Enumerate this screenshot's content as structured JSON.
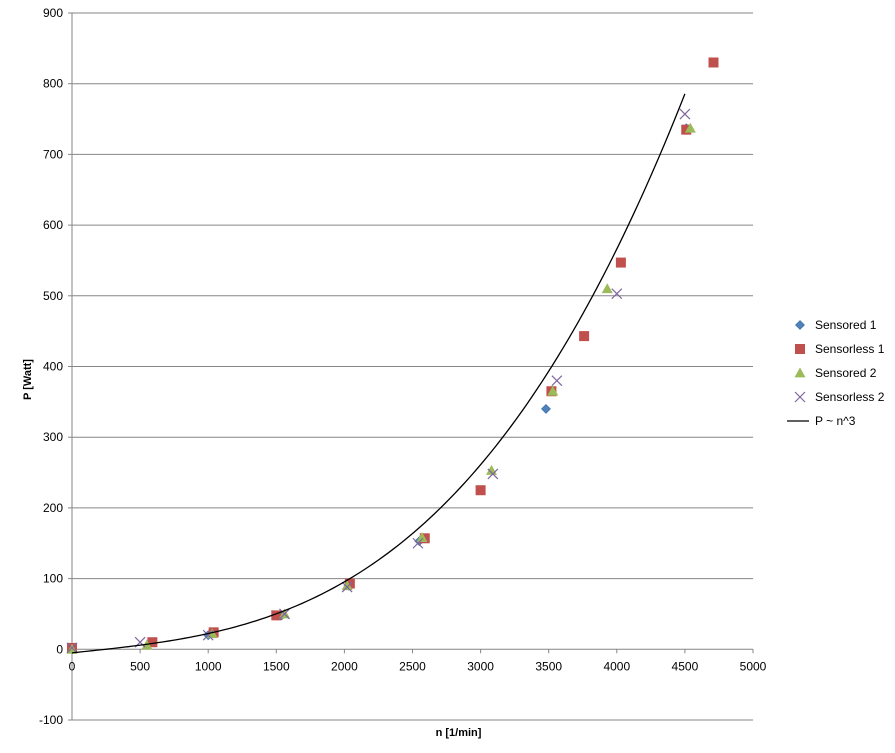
{
  "chart_data": {
    "type": "scatter",
    "title": "",
    "xlabel": "n  [1/min]",
    "ylabel": "P [Watt]",
    "xlim": [
      0,
      5000
    ],
    "ylim": [
      -100,
      900
    ],
    "xticks": [
      0,
      500,
      1000,
      1500,
      2000,
      2500,
      3000,
      3500,
      4000,
      4500,
      5000
    ],
    "yticks": [
      -100,
      0,
      100,
      200,
      300,
      400,
      500,
      600,
      700,
      800,
      900
    ],
    "grid": "horizontal",
    "legend_position": "right",
    "series": [
      {
        "name": "Sensored 1",
        "marker": "diamond",
        "color": "#4F81BD",
        "points": [
          [
            0,
            0
          ],
          [
            1000,
            20
          ],
          [
            1540,
            48
          ],
          [
            2030,
            90
          ],
          [
            2550,
            153
          ],
          [
            3480,
            340
          ],
          [
            4510,
            737
          ]
        ]
      },
      {
        "name": "Sensorless 1",
        "marker": "square",
        "color": "#C0504D",
        "points": [
          [
            0,
            2
          ],
          [
            590,
            10
          ],
          [
            1040,
            24
          ],
          [
            1500,
            48
          ],
          [
            2040,
            93
          ],
          [
            2590,
            157
          ],
          [
            3000,
            225
          ],
          [
            3520,
            365
          ],
          [
            3760,
            443
          ],
          [
            4030,
            547
          ],
          [
            4510,
            735
          ],
          [
            4710,
            830
          ]
        ]
      },
      {
        "name": "Sensored 2",
        "marker": "triangle",
        "color": "#9BBB59",
        "points": [
          [
            0,
            0
          ],
          [
            550,
            6
          ],
          [
            1030,
            22
          ],
          [
            1560,
            50
          ],
          [
            2020,
            90
          ],
          [
            2570,
            158
          ],
          [
            3080,
            253
          ],
          [
            3530,
            365
          ],
          [
            3930,
            510
          ],
          [
            4540,
            737
          ]
        ]
      },
      {
        "name": "Sensorless 2",
        "marker": "x",
        "color": "#8064A2",
        "points": [
          [
            0,
            2
          ],
          [
            500,
            10
          ],
          [
            1000,
            20
          ],
          [
            1560,
            50
          ],
          [
            2020,
            88
          ],
          [
            2540,
            150
          ],
          [
            3090,
            248
          ],
          [
            3560,
            380
          ],
          [
            4000,
            503
          ],
          [
            4500,
            757
          ]
        ]
      },
      {
        "name": "P ~ n^3",
        "type": "line",
        "color": "#000000",
        "model": "cubic",
        "x_range": [
          0,
          4500
        ],
        "coefficients": [
          -5,
          0.02,
          -5e-07,
          7.8e-09
        ]
      }
    ]
  }
}
